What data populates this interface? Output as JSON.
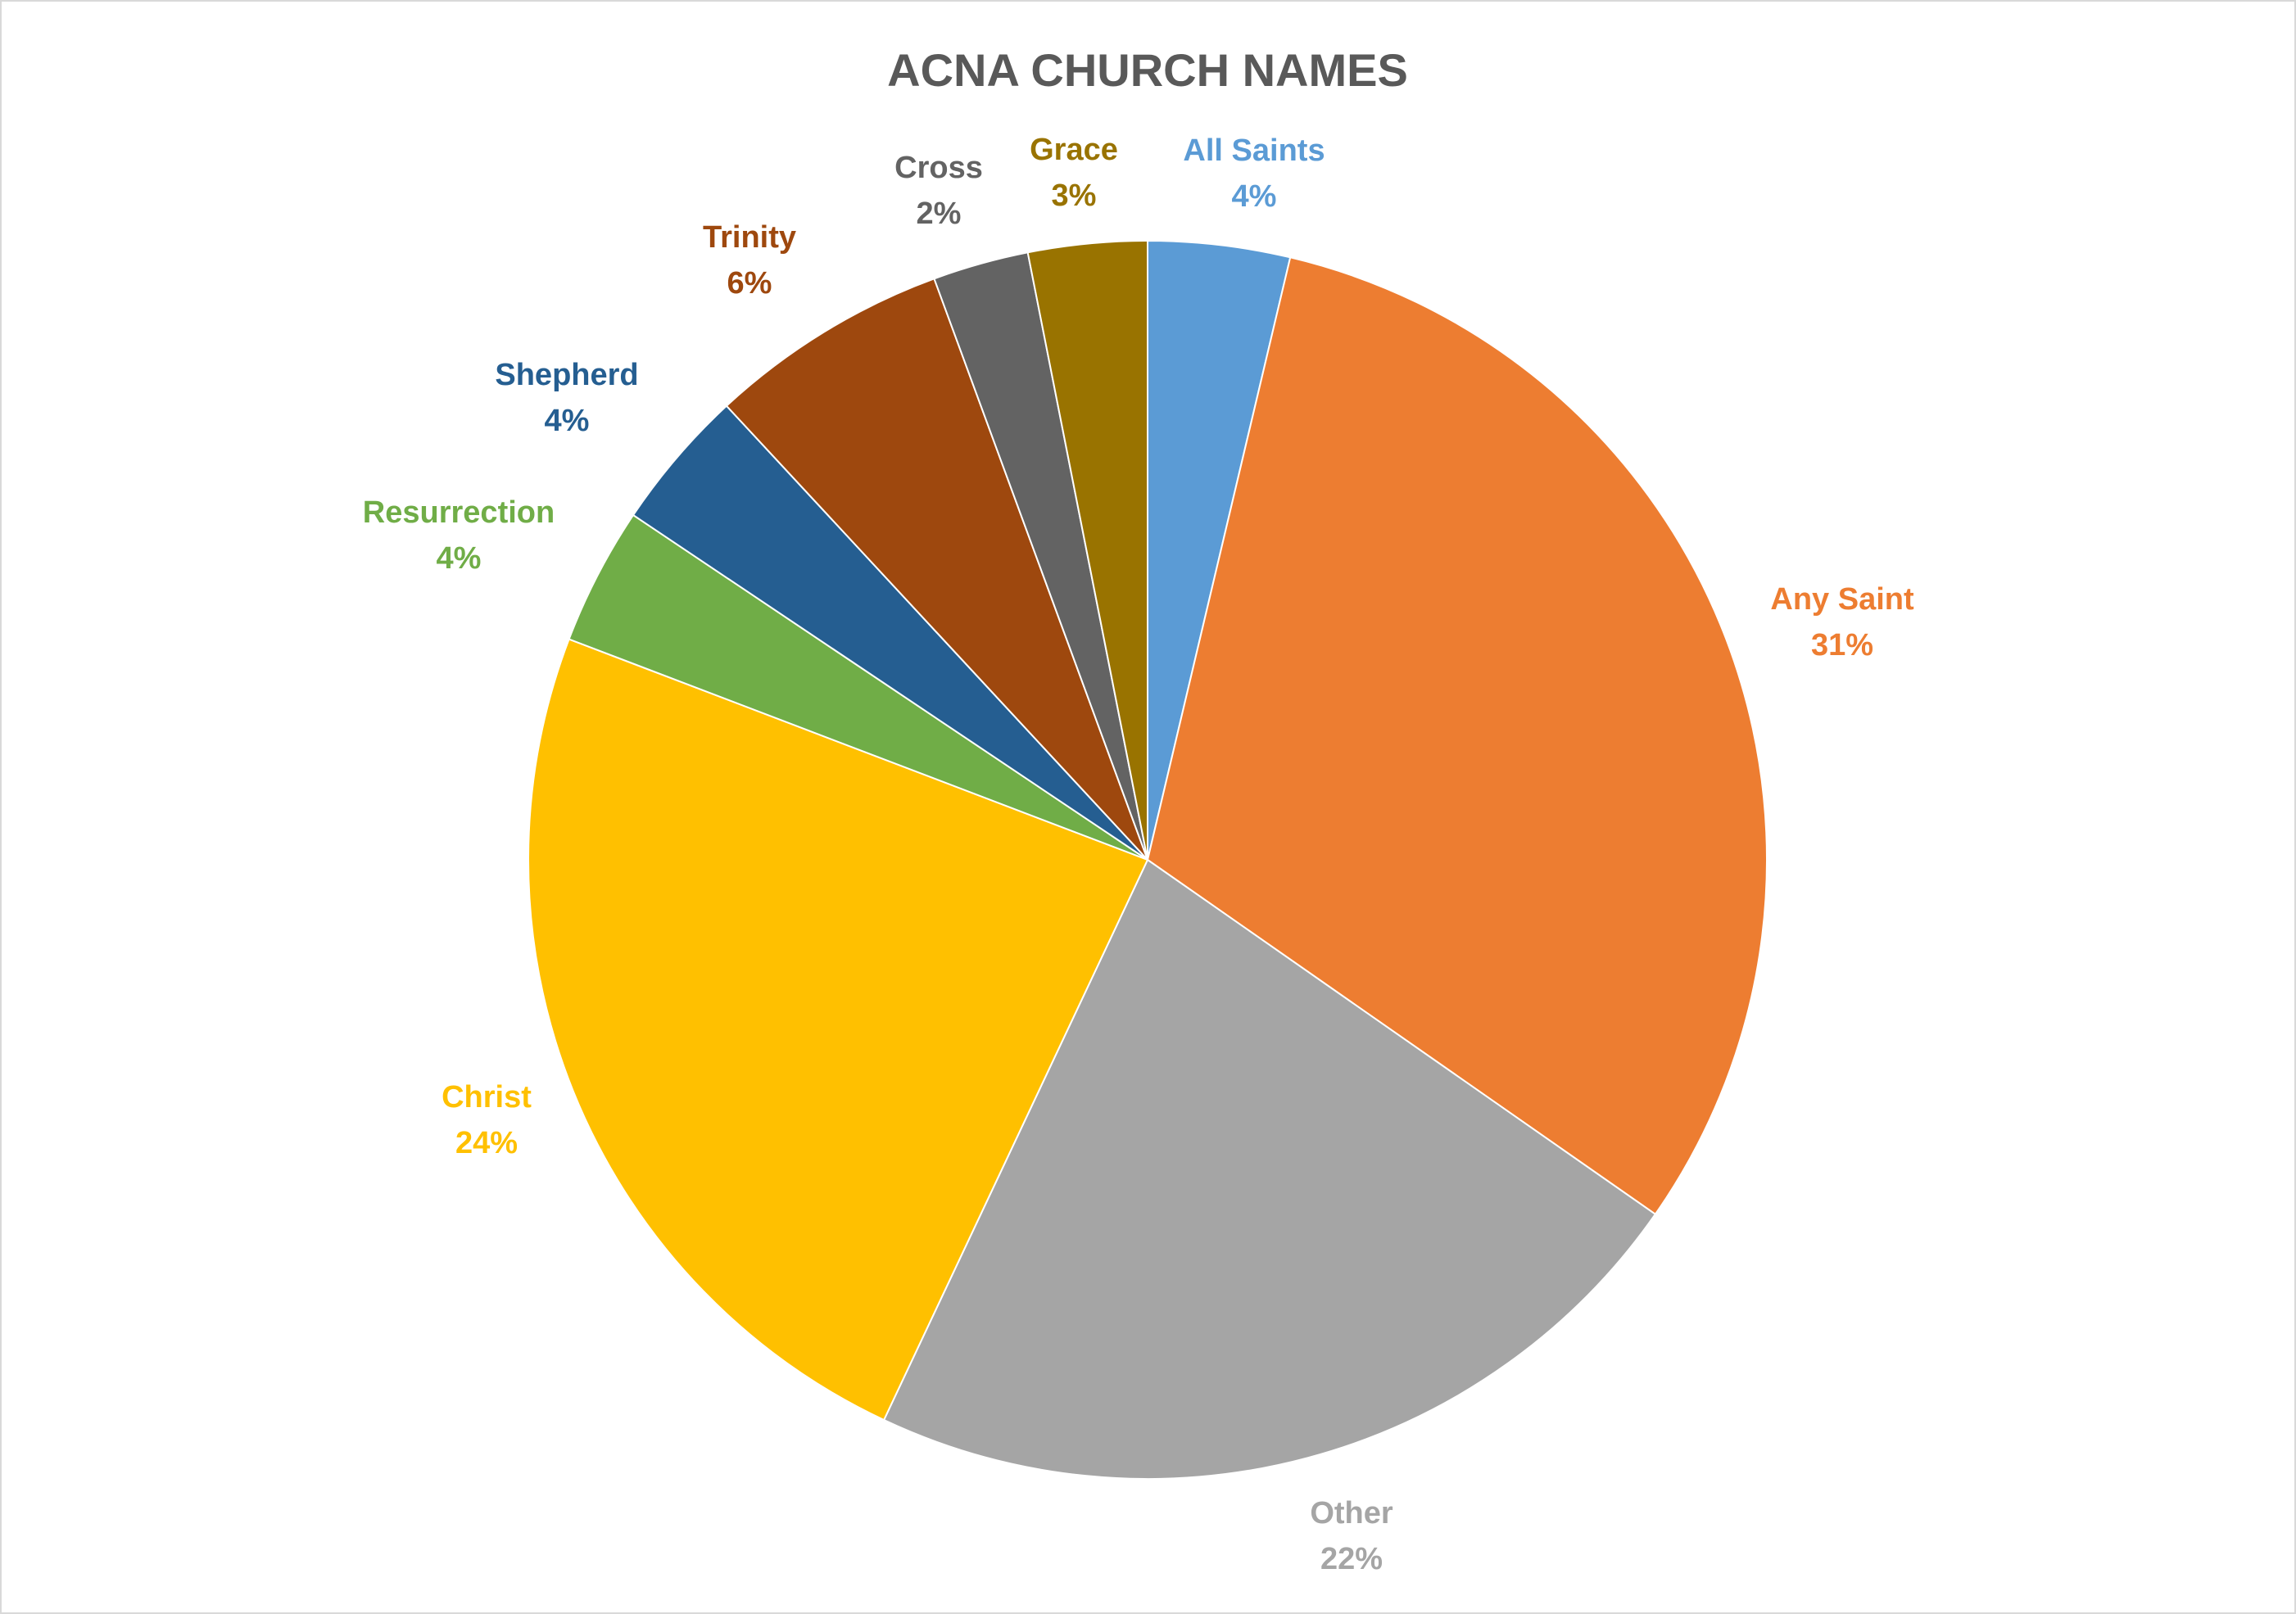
{
  "chart_data": {
    "type": "pie",
    "title": "ACNA CHURCH NAMES",
    "start_angle_deg": 0,
    "direction": "clockwise",
    "legend": "none",
    "slices": [
      {
        "label": "All Saints",
        "percent_label": "4%",
        "value": 3.7,
        "color": "#5b9bd5"
      },
      {
        "label": "Any Saint",
        "percent_label": "31%",
        "value": 31.0,
        "color": "#ed7d31"
      },
      {
        "label": "Other",
        "percent_label": "22%",
        "value": 22.3,
        "color": "#a5a5a5"
      },
      {
        "label": "Christ",
        "percent_label": "24%",
        "value": 23.8,
        "color": "#ffc000"
      },
      {
        "label": "Resurrection",
        "percent_label": "4%",
        "value": 3.6,
        "color": "#70ad47"
      },
      {
        "label": "Shepherd",
        "percent_label": "4%",
        "value": 3.7,
        "color": "#255e91"
      },
      {
        "label": "Trinity",
        "percent_label": "6%",
        "value": 6.3,
        "color": "#9e480e"
      },
      {
        "label": "Cross",
        "percent_label": "2%",
        "value": 2.5,
        "color": "#636363"
      },
      {
        "label": "Grace",
        "percent_label": "3%",
        "value": 3.1,
        "color": "#997300"
      }
    ]
  }
}
